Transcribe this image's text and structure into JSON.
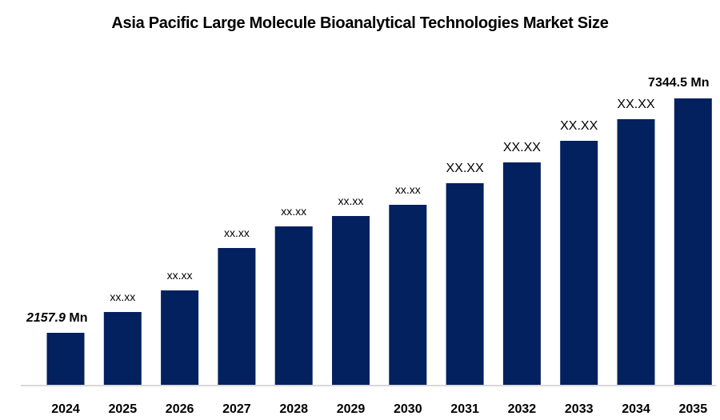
{
  "chart_data": {
    "type": "bar",
    "title": "Asia Pacific Large Molecule Bioanalytical Technologies Market Size",
    "xlabel": "",
    "ylabel": "",
    "categories": [
      "2024",
      "2025",
      "2026",
      "2027",
      "2028",
      "2029",
      "2030",
      "2031",
      "2032",
      "2033",
      "2034",
      "2035"
    ],
    "values": [
      2157.9,
      2618,
      3096,
      4034,
      4512,
      4742,
      4990,
      5468,
      5928,
      6406,
      6884,
      7344.5
    ],
    "data_labels": [
      "2157.9 Mn",
      "xx.xx",
      "xx.xx",
      "xx.xx",
      "xx.xx",
      "xx.xx",
      "xx.xx",
      "XX.XX",
      "XX.XX",
      "XX.XX",
      "XX.XX",
      "7344.5 Mn"
    ],
    "label_start_value": "2157.9",
    "label_start_unit": "Mn",
    "ylim": [
      1000,
      7600
    ],
    "grid": false,
    "legend": "none",
    "bar_color": "#03215e",
    "axis_color": "#d9d9d9"
  }
}
